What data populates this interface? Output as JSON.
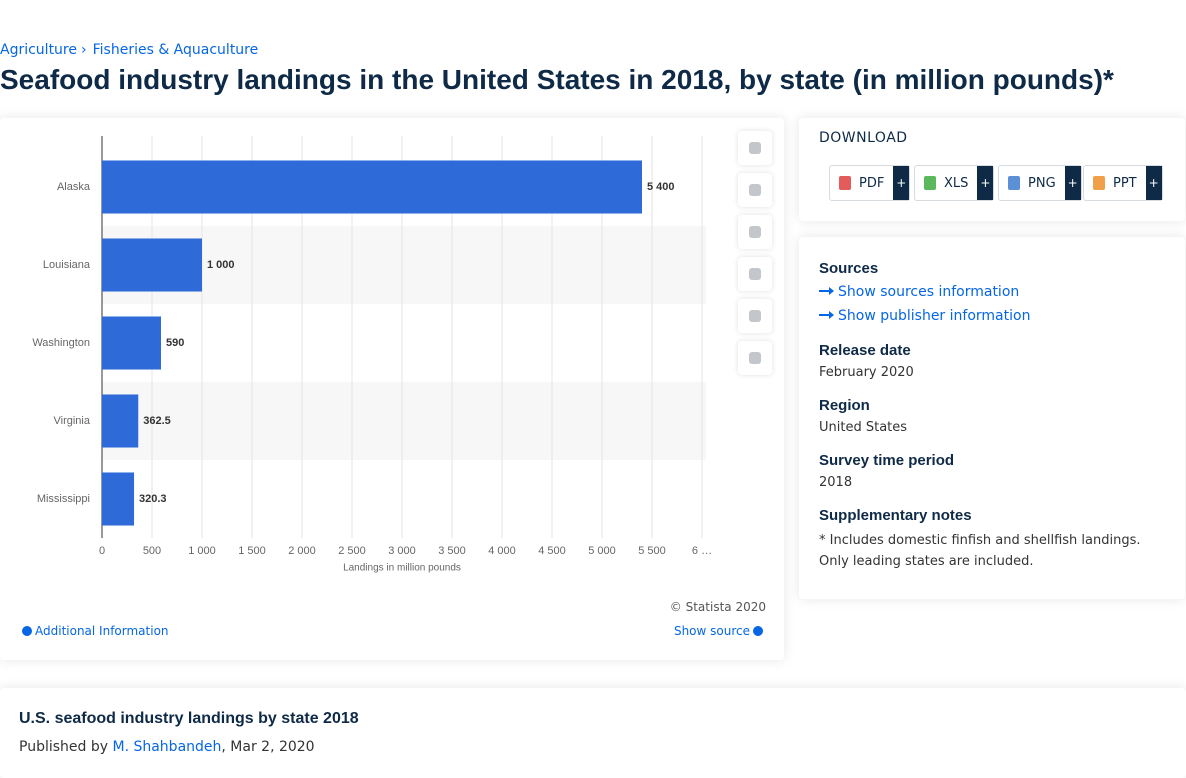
{
  "breadcrumbs": [
    "Agriculture",
    "Fisheries & Aquaculture"
  ],
  "breadcrumb_separator": "›",
  "title": "Seafood industry landings in the United States in 2018, by state (in million pounds)*",
  "chart_data": {
    "type": "hbar",
    "categories": [
      "Alaska",
      "Louisiana",
      "Washington",
      "Virginia",
      "Mississippi"
    ],
    "values": [
      5400,
      1000,
      590,
      362.5,
      320.3
    ],
    "value_labels": [
      "5 400",
      "1 000",
      "590",
      "362.5",
      "320.3"
    ],
    "color": "#2f6bd8",
    "xlabel": "Landings in million pounds",
    "xlim": [
      0,
      6000
    ],
    "xticks": [
      0,
      500,
      {
        "value": 1000,
        "label": "1 000"
      },
      {
        "value": 1500,
        "label": "1 500"
      },
      {
        "value": 2000,
        "label": "2 000"
      },
      {
        "value": 2500,
        "label": "2 500"
      },
      {
        "value": 3000,
        "label": "3 000"
      },
      {
        "value": 3500,
        "label": "3 500"
      },
      {
        "value": 4000,
        "label": "4 000"
      },
      {
        "value": 4500,
        "label": "4 500"
      },
      {
        "value": 5000,
        "label": "5 000"
      },
      {
        "value": 5500,
        "label": "5 500"
      },
      {
        "value": 6000,
        "label": "6 …"
      }
    ],
    "grid": true
  },
  "chart_footer": {
    "credit": "© Statista 2020",
    "additional_information": "Additional Information",
    "show_source": "Show source"
  },
  "download": {
    "heading": "DOWNLOAD",
    "formats": [
      {
        "label": "PDF",
        "more": "+"
      },
      {
        "label": "XLS",
        "more": "+"
      },
      {
        "label": "PNG",
        "more": "+"
      },
      {
        "label": "PPT",
        "more": "+"
      }
    ]
  },
  "details": {
    "sources_heading": "Sources",
    "show_sources": "Show sources information",
    "show_publisher": "Show publisher information",
    "release_date_heading": "Release date",
    "release_date": "February 2020",
    "region_heading": "Region",
    "region": "United States",
    "survey_period_heading": "Survey time period",
    "survey_period": "2018",
    "notes_heading": "Supplementary notes",
    "notes": "* Includes domestic finfish and shellfish landings. Only leading states are included."
  },
  "publication": {
    "title": "U.S. seafood industry landings by state 2018",
    "published_by": "Published by",
    "author": "M. Shahbandeh",
    "date": ", Mar 2, 2020"
  }
}
